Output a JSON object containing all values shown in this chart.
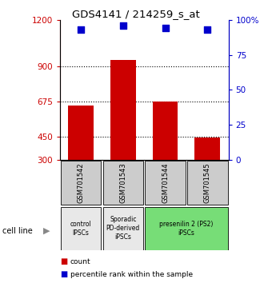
{
  "title": "GDS4141 / 214259_s_at",
  "samples": [
    "GSM701542",
    "GSM701543",
    "GSM701544",
    "GSM701545"
  ],
  "counts": [
    650,
    940,
    675,
    445
  ],
  "percentile_ranks": [
    93,
    96,
    94,
    93
  ],
  "ylim_left": [
    300,
    1200
  ],
  "ylim_right": [
    0,
    100
  ],
  "yticks_left": [
    300,
    450,
    675,
    900,
    1200
  ],
  "yticks_right": [
    0,
    25,
    50,
    75,
    100
  ],
  "ytick_labels_right": [
    "0",
    "25",
    "50",
    "75",
    "100%"
  ],
  "hlines": [
    450,
    675,
    900
  ],
  "bar_color": "#cc0000",
  "scatter_color": "#0000cc",
  "bar_bottom": 300,
  "cell_line_labels": [
    "control\nIPSCs",
    "Sporadic\nPD-derived\niPSCs",
    "presenilin 2 (PS2)\niPSCs"
  ],
  "cell_line_spans": [
    [
      0,
      1
    ],
    [
      1,
      2
    ],
    [
      2,
      4
    ]
  ],
  "cell_line_colors": [
    "#e8e8e8",
    "#e8e8e8",
    "#77dd77"
  ],
  "sample_box_color": "#cccccc",
  "legend_count_color": "#cc0000",
  "legend_pct_color": "#0000cc",
  "bar_width": 0.6,
  "scatter_size": 30
}
